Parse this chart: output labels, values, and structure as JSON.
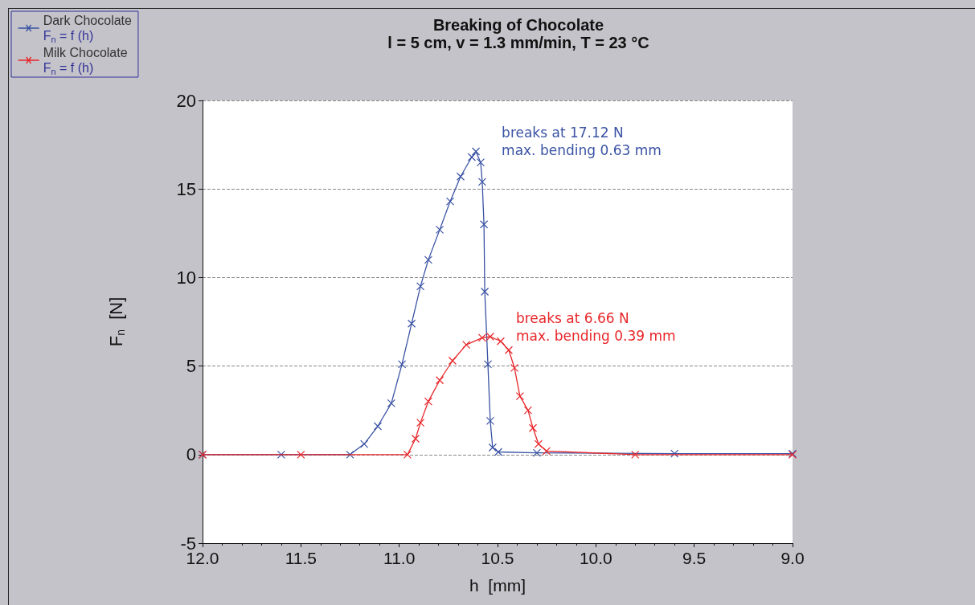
{
  "chart_data": {
    "type": "line",
    "title": "Breaking of Chocolate",
    "subtitle": "l = 5 cm, v = 1.3 mm/min, T = 23 °C",
    "xlabel": "h  [mm]",
    "ylabel": "F$_{n}$  [N]",
    "series": [
      {
        "name": "Dark Chocolate\nF$_{n}$ = f (h)",
        "color": "#3a53a4",
        "x": [
          12.0,
          11.6,
          11.25,
          11.178,
          11.109,
          11.04,
          10.986,
          10.937,
          10.892,
          10.852,
          10.794,
          10.741,
          10.688,
          10.631,
          10.61,
          10.586,
          10.578,
          10.569,
          10.565,
          10.549,
          10.537,
          10.525,
          10.496,
          10.3,
          9.6,
          9.0
        ],
        "values": [
          0,
          0,
          0,
          0.6,
          1.6,
          2.9,
          5.1,
          7.4,
          9.5,
          11.0,
          12.7,
          14.3,
          15.7,
          16.8,
          17.12,
          16.5,
          15.4,
          13.0,
          9.2,
          5.1,
          1.9,
          0.4,
          0.15,
          0.1,
          0.05,
          0.05
        ]
      },
      {
        "name": "Milk Chocolate\nF$_{n}$ = f (h)",
        "color": "#e8262a",
        "x": [
          12.0,
          11.5,
          10.958,
          10.917,
          10.892,
          10.852,
          10.794,
          10.729,
          10.659,
          10.578,
          10.537,
          10.484,
          10.443,
          10.414,
          10.386,
          10.345,
          10.32,
          10.292,
          10.251,
          9.8,
          9.0
        ],
        "values": [
          0,
          0,
          0,
          0.9,
          1.8,
          3.0,
          4.2,
          5.3,
          6.2,
          6.6,
          6.66,
          6.4,
          5.9,
          4.9,
          3.3,
          2.5,
          1.5,
          0.6,
          0.2,
          0,
          0
        ]
      }
    ],
    "annotations": [
      {
        "text": "breaks at 17.12 N\nmax. bending 0.63 mm",
        "x": 10.61,
        "y": 17.12
      },
      {
        "text": "breaks at 6.66 N\nmax. bending 0.39 mm",
        "x": 10.537,
        "y": 6.66
      }
    ],
    "xlim": [
      12,
      9
    ],
    "xticks": [
      {
        "value": 12,
        "label": "12.0"
      },
      {
        "value": 11.5,
        "label": "11.5"
      },
      {
        "value": 11,
        "label": "11.0"
      },
      {
        "value": 10.5,
        "label": "10.5"
      },
      {
        "value": 10,
        "label": "10.0"
      },
      {
        "value": 9.5,
        "label": "9.5"
      },
      {
        "value": 9,
        "label": "9.0"
      }
    ],
    "ylim": [
      -5,
      20
    ],
    "yticks": [
      -5,
      0,
      5,
      10,
      15,
      20
    ],
    "grid": "y",
    "legend": "top left",
    "marker": "cross",
    "line_style": "solid"
  }
}
